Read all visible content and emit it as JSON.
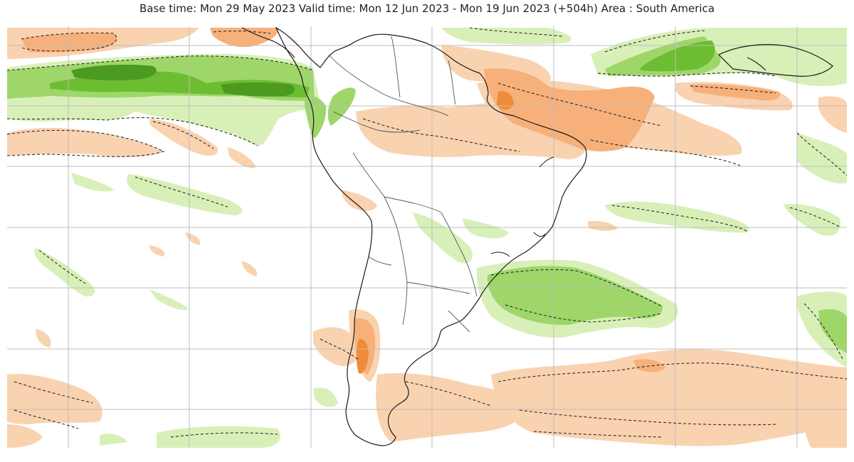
{
  "map": {
    "title": "Base time: Mon 29 May 2023 Valid time: Mon 12 Jun 2023 - Mon 19 Jun 2023 (+504h) Area : South America",
    "region": "South America",
    "base_time": "Mon 29 May 2023",
    "valid_time_start": "Mon 12 Jun 2023",
    "valid_time_end": "Mon 19 Jun 2023",
    "lead_time": "+504h",
    "projection": "equirectangular lat/lon grid",
    "grid": true,
    "colors": {
      "ocean_land_background": "#ffffff",
      "grid_line": "#bdbdbd",
      "coastline": "#1a1a1a",
      "border": "#555555",
      "contour_dashed": "#1a1a1a",
      "positive_light": "#d8f0b8",
      "positive_medium": "#9ed66a",
      "positive_strong": "#6dbd32",
      "positive_max": "#4c9a20",
      "negative_light": "#f9d2b0",
      "negative_medium": "#f7b07a",
      "negative_strong": "#f08b3a"
    }
  }
}
